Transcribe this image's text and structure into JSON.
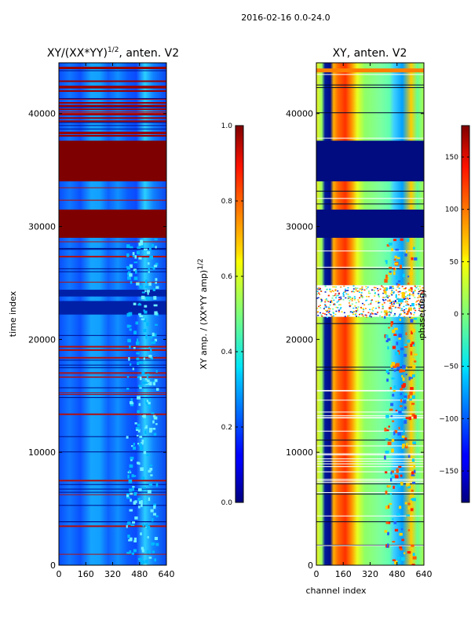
{
  "figure_title": "2016-02-16 0.0-24.0",
  "chart_data": [
    {
      "type": "heatmap",
      "title_main": "XY/(XX*YY)",
      "title_sup": "1/2",
      "title_tail": ", anten. V2",
      "xlabel": "",
      "ylabel": "time index",
      "x_ticks": [
        0,
        160,
        320,
        480,
        640
      ],
      "y_ticks": [
        0,
        10000,
        20000,
        30000,
        40000
      ],
      "xlim": [
        0,
        640
      ],
      "ylim": [
        0,
        44500
      ],
      "colorbar": {
        "label_main": "XY amp. / (XX*YY amp)",
        "label_sup": "1/2",
        "ticks": [
          "0.0",
          "0.2",
          "0.4",
          "0.6",
          "0.8",
          "1.0"
        ],
        "range": [
          0.0,
          1.0
        ]
      },
      "saturated_bands": [
        [
          29000,
          31500
        ],
        [
          34000,
          37600
        ]
      ],
      "low_bands": [
        [
          22200,
          23400
        ],
        [
          23800,
          24400
        ]
      ]
    },
    {
      "type": "heatmap",
      "title_main": "XY, anten. V2",
      "xlabel": "channel index",
      "ylabel": "",
      "x_ticks": [
        0,
        160,
        320,
        480,
        640
      ],
      "y_ticks": [
        0,
        10000,
        20000,
        30000,
        40000
      ],
      "xlim": [
        0,
        640
      ],
      "ylim": [
        0,
        44500
      ],
      "colorbar": {
        "label_main": "phase(deg)",
        "ticks": [
          "150",
          "100",
          "50",
          "0",
          "−50",
          "−100",
          "−150"
        ],
        "range": [
          -180,
          180
        ]
      },
      "low_bands": [
        [
          29000,
          31500
        ],
        [
          34000,
          37600
        ]
      ],
      "noisy_bands": [
        [
          22000,
          24800
        ]
      ]
    }
  ]
}
